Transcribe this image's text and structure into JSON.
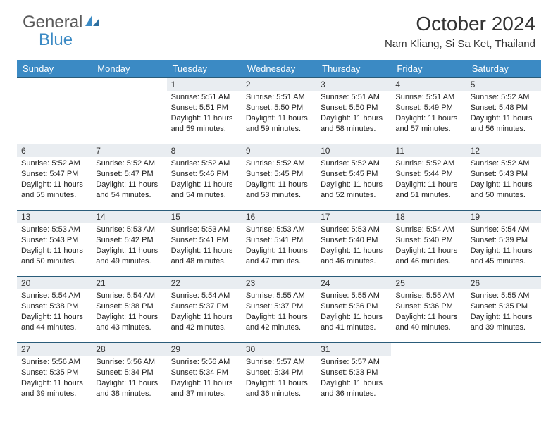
{
  "logo": {
    "part1": "General",
    "part2": "Blue"
  },
  "title": "October 2024",
  "location": "Nam Kliang, Si Sa Ket, Thailand",
  "colors": {
    "header_bg": "#3b8ac4",
    "header_text": "#ffffff",
    "daynum_bg": "#e9edf1",
    "daynum_border": "#2a5c7a",
    "body_text": "#222222",
    "logo_gray": "#5a5a5a",
    "logo_blue": "#3b8ac4"
  },
  "weekdays": [
    "Sunday",
    "Monday",
    "Tuesday",
    "Wednesday",
    "Thursday",
    "Friday",
    "Saturday"
  ],
  "weeks": [
    [
      null,
      null,
      {
        "n": "1",
        "sr": "5:51 AM",
        "ss": "5:51 PM",
        "dl": "11 hours",
        "dm": "59 minutes."
      },
      {
        "n": "2",
        "sr": "5:51 AM",
        "ss": "5:50 PM",
        "dl": "11 hours",
        "dm": "59 minutes."
      },
      {
        "n": "3",
        "sr": "5:51 AM",
        "ss": "5:50 PM",
        "dl": "11 hours",
        "dm": "58 minutes."
      },
      {
        "n": "4",
        "sr": "5:51 AM",
        "ss": "5:49 PM",
        "dl": "11 hours",
        "dm": "57 minutes."
      },
      {
        "n": "5",
        "sr": "5:52 AM",
        "ss": "5:48 PM",
        "dl": "11 hours",
        "dm": "56 minutes."
      }
    ],
    [
      {
        "n": "6",
        "sr": "5:52 AM",
        "ss": "5:47 PM",
        "dl": "11 hours",
        "dm": "55 minutes."
      },
      {
        "n": "7",
        "sr": "5:52 AM",
        "ss": "5:47 PM",
        "dl": "11 hours",
        "dm": "54 minutes."
      },
      {
        "n": "8",
        "sr": "5:52 AM",
        "ss": "5:46 PM",
        "dl": "11 hours",
        "dm": "54 minutes."
      },
      {
        "n": "9",
        "sr": "5:52 AM",
        "ss": "5:45 PM",
        "dl": "11 hours",
        "dm": "53 minutes."
      },
      {
        "n": "10",
        "sr": "5:52 AM",
        "ss": "5:45 PM",
        "dl": "11 hours",
        "dm": "52 minutes."
      },
      {
        "n": "11",
        "sr": "5:52 AM",
        "ss": "5:44 PM",
        "dl": "11 hours",
        "dm": "51 minutes."
      },
      {
        "n": "12",
        "sr": "5:52 AM",
        "ss": "5:43 PM",
        "dl": "11 hours",
        "dm": "50 minutes."
      }
    ],
    [
      {
        "n": "13",
        "sr": "5:53 AM",
        "ss": "5:43 PM",
        "dl": "11 hours",
        "dm": "50 minutes."
      },
      {
        "n": "14",
        "sr": "5:53 AM",
        "ss": "5:42 PM",
        "dl": "11 hours",
        "dm": "49 minutes."
      },
      {
        "n": "15",
        "sr": "5:53 AM",
        "ss": "5:41 PM",
        "dl": "11 hours",
        "dm": "48 minutes."
      },
      {
        "n": "16",
        "sr": "5:53 AM",
        "ss": "5:41 PM",
        "dl": "11 hours",
        "dm": "47 minutes."
      },
      {
        "n": "17",
        "sr": "5:53 AM",
        "ss": "5:40 PM",
        "dl": "11 hours",
        "dm": "46 minutes."
      },
      {
        "n": "18",
        "sr": "5:54 AM",
        "ss": "5:40 PM",
        "dl": "11 hours",
        "dm": "46 minutes."
      },
      {
        "n": "19",
        "sr": "5:54 AM",
        "ss": "5:39 PM",
        "dl": "11 hours",
        "dm": "45 minutes."
      }
    ],
    [
      {
        "n": "20",
        "sr": "5:54 AM",
        "ss": "5:38 PM",
        "dl": "11 hours",
        "dm": "44 minutes."
      },
      {
        "n": "21",
        "sr": "5:54 AM",
        "ss": "5:38 PM",
        "dl": "11 hours",
        "dm": "43 minutes."
      },
      {
        "n": "22",
        "sr": "5:54 AM",
        "ss": "5:37 PM",
        "dl": "11 hours",
        "dm": "42 minutes."
      },
      {
        "n": "23",
        "sr": "5:55 AM",
        "ss": "5:37 PM",
        "dl": "11 hours",
        "dm": "42 minutes."
      },
      {
        "n": "24",
        "sr": "5:55 AM",
        "ss": "5:36 PM",
        "dl": "11 hours",
        "dm": "41 minutes."
      },
      {
        "n": "25",
        "sr": "5:55 AM",
        "ss": "5:36 PM",
        "dl": "11 hours",
        "dm": "40 minutes."
      },
      {
        "n": "26",
        "sr": "5:55 AM",
        "ss": "5:35 PM",
        "dl": "11 hours",
        "dm": "39 minutes."
      }
    ],
    [
      {
        "n": "27",
        "sr": "5:56 AM",
        "ss": "5:35 PM",
        "dl": "11 hours",
        "dm": "39 minutes."
      },
      {
        "n": "28",
        "sr": "5:56 AM",
        "ss": "5:34 PM",
        "dl": "11 hours",
        "dm": "38 minutes."
      },
      {
        "n": "29",
        "sr": "5:56 AM",
        "ss": "5:34 PM",
        "dl": "11 hours",
        "dm": "37 minutes."
      },
      {
        "n": "30",
        "sr": "5:57 AM",
        "ss": "5:34 PM",
        "dl": "11 hours",
        "dm": "36 minutes."
      },
      {
        "n": "31",
        "sr": "5:57 AM",
        "ss": "5:33 PM",
        "dl": "11 hours",
        "dm": "36 minutes."
      },
      null,
      null
    ]
  ],
  "labels": {
    "sunrise": "Sunrise:",
    "sunset": "Sunset:",
    "daylight": "Daylight:",
    "and": "and"
  }
}
